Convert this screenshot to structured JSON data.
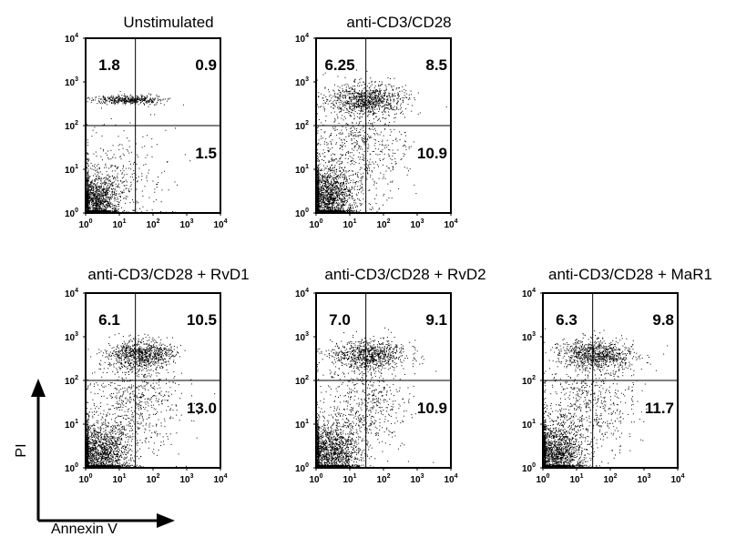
{
  "chart_data": {
    "type": "scatter",
    "x_axis": {
      "label": "Annexin V",
      "scale": "log",
      "range": [
        1,
        10000
      ],
      "ticks": [
        {
          "base": "10",
          "exp": "0"
        },
        {
          "base": "10",
          "exp": "1"
        },
        {
          "base": "10",
          "exp": "2"
        },
        {
          "base": "10",
          "exp": "3"
        },
        {
          "base": "10",
          "exp": "4"
        }
      ]
    },
    "y_axis": {
      "label": "PI",
      "scale": "log",
      "range": [
        1,
        10000
      ],
      "ticks": [
        {
          "base": "10",
          "exp": "0"
        },
        {
          "base": "10",
          "exp": "1"
        },
        {
          "base": "10",
          "exp": "2"
        },
        {
          "base": "10",
          "exp": "3"
        },
        {
          "base": "10",
          "exp": "4"
        }
      ]
    },
    "gates": {
      "x": 30,
      "y": 100
    },
    "panels": [
      {
        "title": "Unstimulated",
        "upper_left": "1.8",
        "upper_right": "0.9",
        "lower_right": "1.5"
      },
      {
        "title": "anti-CD3/CD28",
        "upper_left": "6.25",
        "upper_right": "8.5",
        "lower_right": "10.9"
      },
      {
        "title": "anti-CD3/CD28 + RvD1",
        "upper_left": "6.1",
        "upper_right": "10.5",
        "lower_right": "13.0"
      },
      {
        "title": "anti-CD3/CD28 + RvD2",
        "upper_left": "7.0",
        "upper_right": "9.1",
        "lower_right": "10.9"
      },
      {
        "title": "anti-CD3/CD28 + MaR1",
        "upper_left": "6.3",
        "upper_right": "9.8",
        "lower_right": "11.7"
      }
    ]
  }
}
